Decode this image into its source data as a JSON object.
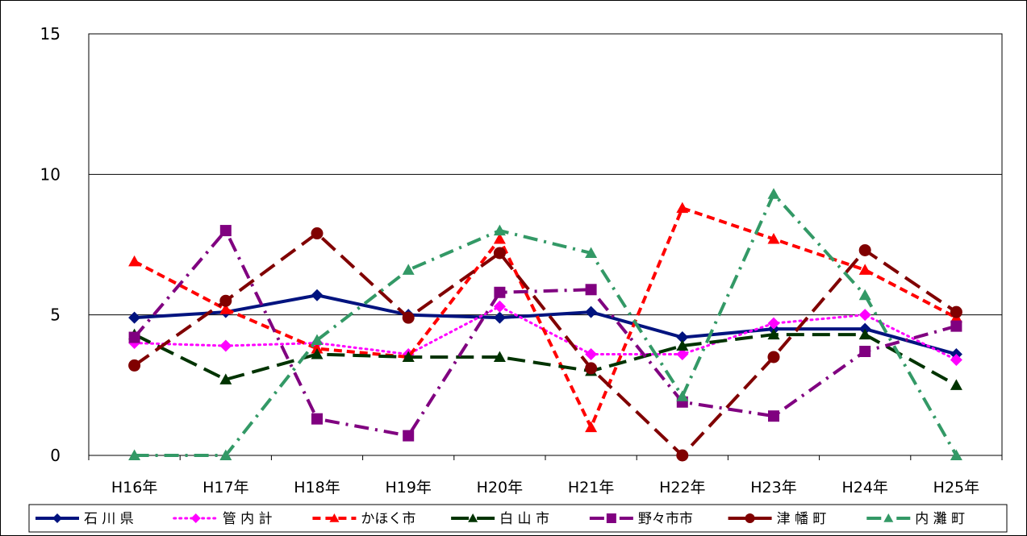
{
  "chart_data": {
    "type": "line",
    "title": "",
    "xlabel": "",
    "ylabel": "",
    "ylim": [
      0,
      15
    ],
    "yticks": [
      0,
      5,
      10,
      15
    ],
    "grid": "horizontal",
    "legend_position": "bottom",
    "categories": [
      "H16年",
      "H17年",
      "H18年",
      "H19年",
      "H20年",
      "H21年",
      "H22年",
      "H23年",
      "H24年",
      "H25年"
    ],
    "series": [
      {
        "name": "石 川 県",
        "color": "#00137f",
        "dash": "solid",
        "marker": "diamond",
        "values": [
          4.9,
          5.1,
          5.7,
          5.0,
          4.9,
          5.1,
          4.2,
          4.5,
          4.5,
          3.6
        ]
      },
      {
        "name": "管 内 計",
        "color": "#ff00ff",
        "dash": "dot",
        "marker": "diamond",
        "values": [
          4.0,
          3.9,
          4.0,
          3.6,
          5.3,
          3.6,
          3.6,
          4.7,
          5.0,
          3.4
        ]
      },
      {
        "name": "かほく市",
        "color": "#ff0000",
        "dash": "dash",
        "marker": "triangle",
        "values": [
          6.9,
          5.2,
          3.8,
          3.5,
          7.7,
          1.0,
          8.8,
          7.7,
          6.6,
          4.9
        ]
      },
      {
        "name": "白 山 市",
        "color": "#003300",
        "dash": "longdash",
        "marker": "triangle",
        "values": [
          4.3,
          2.7,
          3.6,
          3.5,
          3.5,
          3.0,
          3.9,
          4.3,
          4.3,
          2.5
        ]
      },
      {
        "name": "野々市市",
        "color": "#800080",
        "dash": "dashdot",
        "marker": "square",
        "values": [
          4.2,
          8.0,
          1.3,
          0.7,
          5.8,
          5.9,
          1.9,
          1.4,
          3.7,
          4.6
        ]
      },
      {
        "name": "津 幡 町",
        "color": "#800000",
        "dash": "longdash",
        "marker": "circle",
        "values": [
          3.2,
          5.5,
          7.9,
          4.9,
          7.2,
          3.1,
          0.0,
          3.5,
          7.3,
          5.1
        ]
      },
      {
        "name": "内 灘 町",
        "color": "#339966",
        "dash": "dashdot",
        "marker": "triangle",
        "values": [
          0.0,
          0.0,
          4.1,
          6.6,
          8.0,
          7.2,
          2.1,
          9.3,
          5.7,
          0.0
        ]
      }
    ]
  }
}
